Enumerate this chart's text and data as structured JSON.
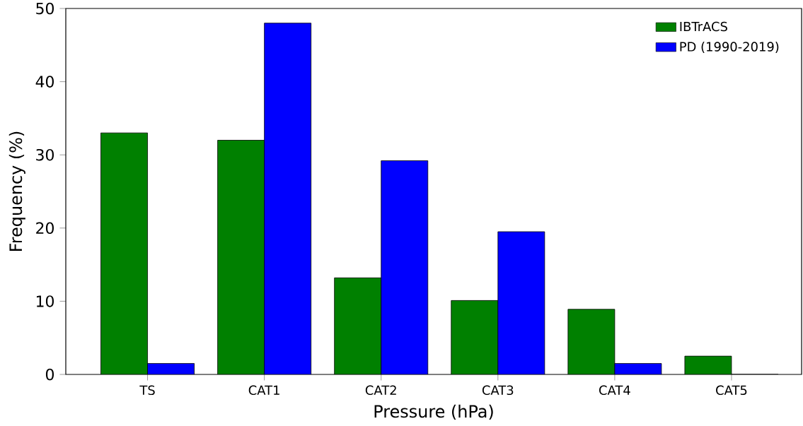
{
  "chart_data": {
    "type": "bar",
    "xlabel": "Pressure (hPa)",
    "ylabel": "Frequency (%)",
    "categories": [
      "TS",
      "CAT1",
      "CAT2",
      "CAT3",
      "CAT4",
      "CAT5"
    ],
    "series": [
      {
        "name": "IBTrACS",
        "color": "#008000",
        "values": [
          33,
          32,
          13.2,
          10.1,
          8.9,
          2.5
        ]
      },
      {
        "name": "PD (1990-2019)",
        "color": "#0000ff",
        "values": [
          1.5,
          48,
          29.2,
          19.5,
          1.5,
          0
        ]
      }
    ],
    "ylim": [
      0,
      50
    ],
    "yticks": [
      0,
      10,
      20,
      30,
      40,
      50
    ],
    "grid": false,
    "legend": "top right"
  }
}
